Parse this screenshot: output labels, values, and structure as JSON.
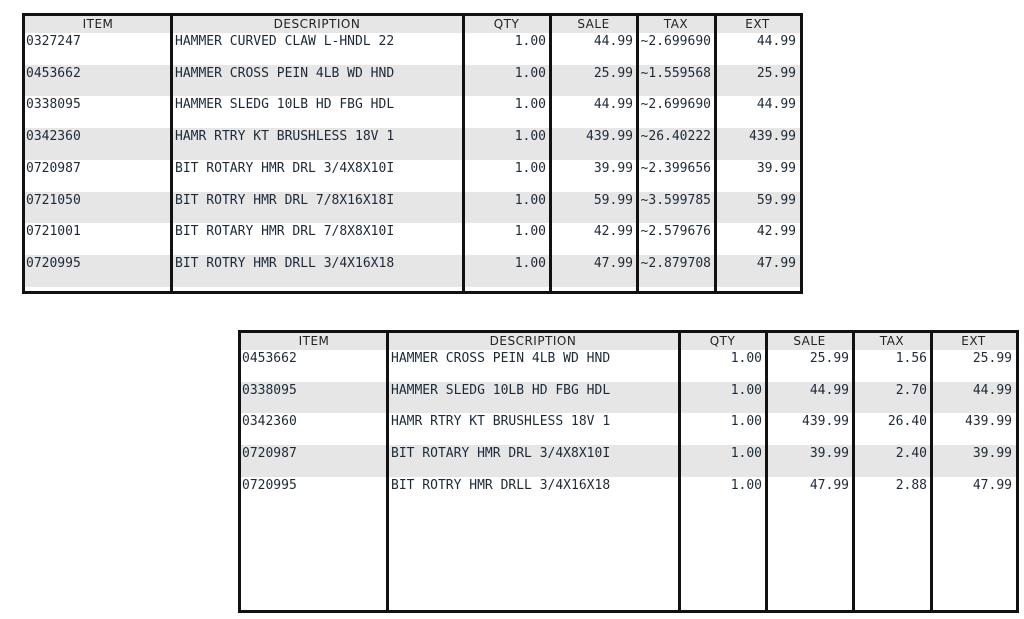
{
  "columns": [
    "ITEM",
    "DESCRIPTION",
    "QTY",
    "SALE",
    "TAX",
    "EXT"
  ],
  "table1": {
    "rows": [
      [
        "0327247",
        "HAMMER CURVED CLAW L-HNDL 22",
        "1.00",
        "44.99",
        "~2.699690",
        "44.99"
      ],
      [
        "0453662",
        "HAMMER CROSS PEIN 4LB WD HND",
        "1.00",
        "25.99",
        "~1.559568",
        "25.99"
      ],
      [
        "0338095",
        "HAMMER SLEDG 10LB HD FBG HDL",
        "1.00",
        "44.99",
        "~2.699690",
        "44.99"
      ],
      [
        "0342360",
        "HAMR RTRY KT BRUSHLESS 18V 1",
        "1.00",
        "439.99",
        "~26.40222",
        "439.99"
      ],
      [
        "0720987",
        "BIT ROTARY HMR DRL 3/4X8X10I",
        "1.00",
        "39.99",
        "~2.399656",
        "39.99"
      ],
      [
        "0721050",
        "BIT ROTRY HMR DRL 7/8X16X18I",
        "1.00",
        "59.99",
        "~3.599785",
        "59.99"
      ],
      [
        "0721001",
        "BIT ROTARY HMR DRL 7/8X8X10I",
        "1.00",
        "42.99",
        "~2.579676",
        "42.99"
      ],
      [
        "0720995",
        "BIT ROTRY HMR DRLL 3/4X16X18",
        "1.00",
        "47.99",
        "~2.879708",
        "47.99"
      ]
    ]
  },
  "table2": {
    "rows": [
      [
        "0453662",
        "HAMMER CROSS PEIN 4LB WD HND",
        "1.00",
        "25.99",
        "1.56",
        "25.99"
      ],
      [
        "0338095",
        "HAMMER SLEDG 10LB HD FBG HDL",
        "1.00",
        "44.99",
        "2.70",
        "44.99"
      ],
      [
        "0342360",
        "HAMR RTRY KT BRUSHLESS 18V 1",
        "1.00",
        "439.99",
        "26.40",
        "439.99"
      ],
      [
        "0720987",
        "BIT ROTARY HMR DRL 3/4X8X10I",
        "1.00",
        "39.99",
        "2.40",
        "39.99"
      ],
      [
        "0720995",
        "BIT ROTRY HMR DRLL 3/4X16X18",
        "1.00",
        "47.99",
        "2.88",
        "47.99"
      ]
    ]
  },
  "colors": {
    "border": "#111111",
    "stripe": "#e6e6e6",
    "text": "#1c2a38"
  }
}
